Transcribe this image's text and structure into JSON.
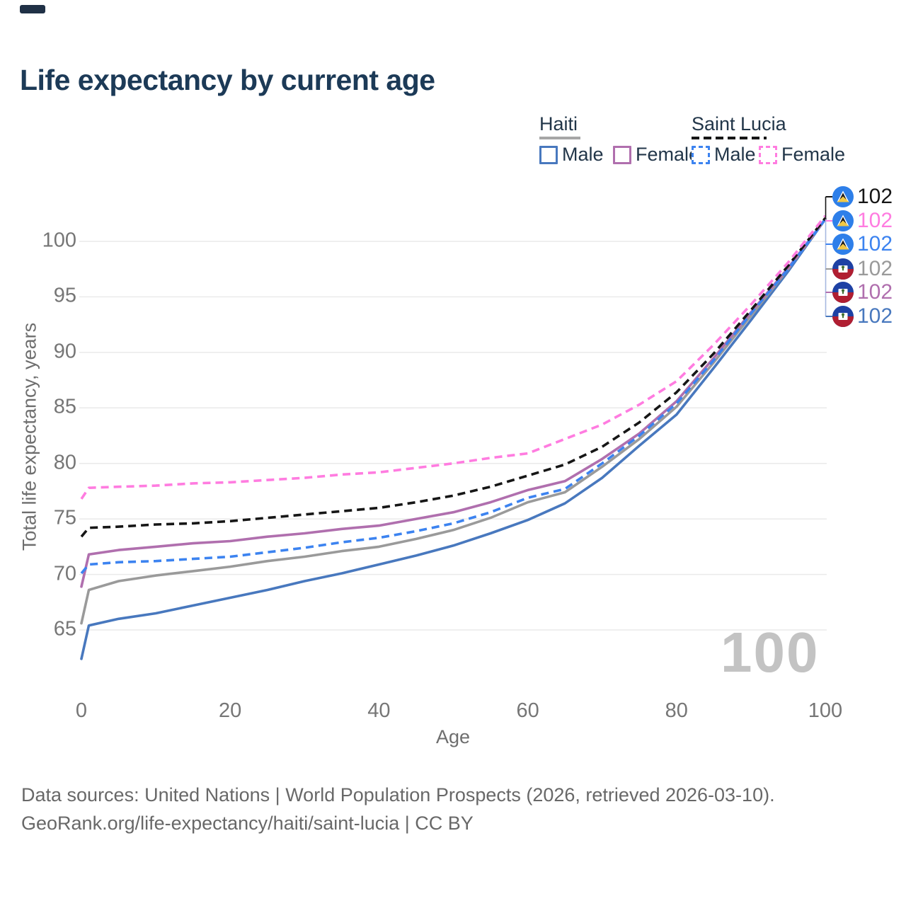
{
  "page": {
    "title": "Life expectancy by current age"
  },
  "legend": {
    "haiti": {
      "label": "Haiti",
      "male_label": "Male",
      "female_label": "Female",
      "male_color": "#4878be",
      "female_color": "#b06fae",
      "total_color": "#a6a6a6"
    },
    "saint_lucia": {
      "label": "Saint Lucia",
      "male_label": "Male",
      "female_label": "Female",
      "male_color": "#3c83f0",
      "female_color": "#ff7ce0",
      "total_color": "#161616"
    }
  },
  "chart_data": {
    "type": "line",
    "title": "Life expectancy by current age",
    "xlabel": "Age",
    "ylabel": "Total life expectancy, years",
    "xlim": [
      0,
      100
    ],
    "ylim": [
      62,
      103
    ],
    "x_ticks": [
      0,
      20,
      40,
      60,
      80,
      100
    ],
    "y_ticks": [
      65,
      70,
      75,
      80,
      85,
      90,
      95,
      100
    ],
    "grid": "horizontal",
    "legend_position": "top-right",
    "x": [
      0,
      1,
      5,
      10,
      15,
      20,
      25,
      30,
      35,
      40,
      45,
      50,
      55,
      60,
      65,
      70,
      75,
      80,
      85,
      90,
      95,
      100
    ],
    "series": [
      {
        "id": "haiti-male",
        "name": "Haiti Male",
        "country": "Haiti",
        "sex": "Male",
        "style": "solid",
        "color": "#4878be",
        "values": [
          62.4,
          65.4,
          66.0,
          66.5,
          67.2,
          67.9,
          68.6,
          69.4,
          70.1,
          70.9,
          71.7,
          72.6,
          73.7,
          74.9,
          76.4,
          78.7,
          81.6,
          84.4,
          88.6,
          92.9,
          97.3,
          102.0
        ]
      },
      {
        "id": "haiti-both",
        "name": "Haiti Both sexes",
        "country": "Haiti",
        "sex": "Both sexes",
        "style": "solid",
        "color": "#9a9a9a",
        "values": [
          65.6,
          68.6,
          69.4,
          69.9,
          70.3,
          70.7,
          71.2,
          71.6,
          72.1,
          72.5,
          73.2,
          74.0,
          75.1,
          76.5,
          77.4,
          79.7,
          82.2,
          85.1,
          89.1,
          93.3,
          97.5,
          102.0
        ]
      },
      {
        "id": "haiti-female",
        "name": "Haiti Female",
        "country": "Haiti",
        "sex": "Female",
        "style": "solid",
        "color": "#b06fae",
        "values": [
          68.9,
          71.8,
          72.2,
          72.5,
          72.8,
          73.0,
          73.4,
          73.7,
          74.1,
          74.4,
          75.0,
          75.6,
          76.5,
          77.6,
          78.4,
          80.4,
          82.7,
          85.6,
          89.5,
          93.6,
          97.6,
          102.0
        ]
      },
      {
        "id": "saint-lucia-male",
        "name": "Saint Lucia Male",
        "country": "Saint Lucia",
        "sex": "Male",
        "style": "dashed",
        "color": "#3c83f0",
        "values": [
          70.1,
          70.9,
          71.1,
          71.2,
          71.4,
          71.6,
          72.0,
          72.4,
          72.9,
          73.3,
          73.9,
          74.6,
          75.6,
          76.9,
          77.7,
          80.0,
          82.5,
          85.4,
          89.3,
          93.5,
          97.5,
          102.0
        ]
      },
      {
        "id": "saint-lucia-both",
        "name": "Saint Lucia Both sexes",
        "country": "Saint Lucia",
        "sex": "Both sexes",
        "style": "dashed",
        "color": "#161616",
        "values": [
          73.4,
          74.2,
          74.3,
          74.5,
          74.6,
          74.8,
          75.1,
          75.4,
          75.7,
          76.0,
          76.5,
          77.1,
          77.9,
          78.9,
          79.9,
          81.5,
          83.7,
          86.4,
          89.9,
          93.8,
          97.8,
          102.1
        ]
      },
      {
        "id": "saint-lucia-female",
        "name": "Saint Lucia Female",
        "country": "Saint Lucia",
        "sex": "Female",
        "style": "dashed",
        "color": "#ff7ce0",
        "values": [
          76.8,
          77.8,
          77.9,
          78.0,
          78.2,
          78.3,
          78.5,
          78.7,
          79.0,
          79.2,
          79.6,
          80.0,
          80.5,
          80.9,
          82.2,
          83.5,
          85.3,
          87.4,
          90.7,
          94.3,
          98.1,
          102.3
        ]
      }
    ],
    "annotations": [
      {
        "flag": "saint-lucia",
        "series": "saint-lucia-both",
        "value": "102",
        "color": "#161616"
      },
      {
        "flag": "saint-lucia",
        "series": "saint-lucia-female",
        "value": "102",
        "color": "#ff7ce0"
      },
      {
        "flag": "saint-lucia",
        "series": "saint-lucia-male",
        "value": "102",
        "color": "#3c83f0"
      },
      {
        "flag": "haiti",
        "series": "haiti-both",
        "value": "102",
        "color": "#9a9a9a"
      },
      {
        "flag": "haiti",
        "series": "haiti-female",
        "value": "102",
        "color": "#b06fae"
      },
      {
        "flag": "haiti",
        "series": "haiti-male",
        "value": "102",
        "color": "#4878be"
      }
    ],
    "flag_colors": {
      "saint_lucia_field": "#2e7fe9",
      "saint_lucia_triangle_black": "#1d1d1d",
      "saint_lucia_triangle_yellow": "#f3c843",
      "haiti_blue": "#1e41a4",
      "haiti_red": "#b01e31"
    }
  },
  "watermark": "100",
  "footer": {
    "line1": "Data sources: United Nations | World Population Prospects (2026, retrieved 2026-03-10).",
    "line2": "GeoRank.org/life-expectancy/haiti/saint-lucia | CC BY"
  }
}
